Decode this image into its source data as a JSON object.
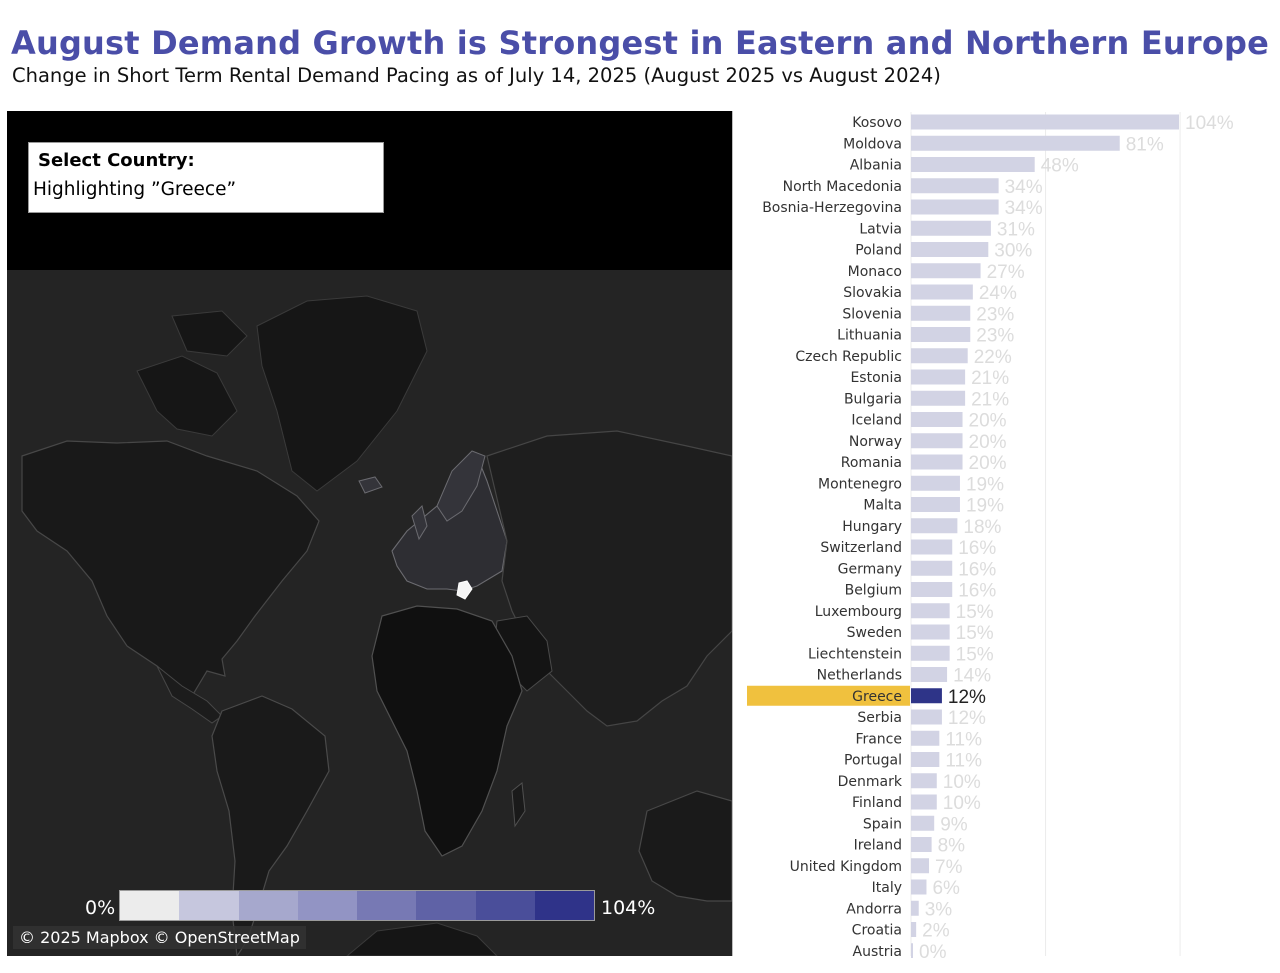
{
  "header": {
    "title": "August Demand Growth is Strongest in Eastern and Northern Europe",
    "subtitle": "Change in Short Term Rental Demand Pacing as of July 14, 2025 (August 2025 vs August 2024)"
  },
  "map": {
    "select_title": "Select Country:",
    "select_value": "Highlighting ”Greece”",
    "legend_min": "0%",
    "legend_max": "104%",
    "legend_colors": [
      "#ececec",
      "#c6c7de",
      "#a6a8cd",
      "#9294c4",
      "#7779b4",
      "#5f62a6",
      "#4a4e9a",
      "#2f3389"
    ],
    "attribution": "© 2025 Mapbox © OpenStreetMap"
  },
  "colors": {
    "title": "#4a4ea8",
    "bar": "#d2d3e4",
    "bar_highlight": "#2e3488",
    "label_highlight_bg": "#f0c13e"
  },
  "chart_data": {
    "type": "bar",
    "orientation": "horizontal",
    "title": "August Demand Growth is Strongest in Eastern and Northern Europe",
    "subtitle": "Change in Short Term Rental Demand Pacing as of July 14, 2025 (August 2025 vs August 2024)",
    "highlighted": "Greece",
    "xlim": [
      0,
      104
    ],
    "value_format": "percent",
    "categories": [
      "Kosovo",
      "Moldova",
      "Albania",
      "North Macedonia",
      "Bosnia-Herzegovina",
      "Latvia",
      "Poland",
      "Monaco",
      "Slovakia",
      "Slovenia",
      "Lithuania",
      "Czech Republic",
      "Estonia",
      "Bulgaria",
      "Iceland",
      "Norway",
      "Romania",
      "Montenegro",
      "Malta",
      "Hungary",
      "Switzerland",
      "Germany",
      "Belgium",
      "Luxembourg",
      "Sweden",
      "Liechtenstein",
      "Netherlands",
      "Greece",
      "Serbia",
      "France",
      "Portugal",
      "Denmark",
      "Finland",
      "Spain",
      "Ireland",
      "United Kingdom",
      "Italy",
      "Andorra",
      "Croatia",
      "Austria"
    ],
    "values": [
      104,
      81,
      48,
      34,
      34,
      31,
      30,
      27,
      24,
      23,
      23,
      22,
      21,
      21,
      20,
      20,
      20,
      19,
      19,
      18,
      16,
      16,
      16,
      15,
      15,
      15,
      14,
      12,
      12,
      11,
      11,
      10,
      10,
      9,
      8,
      7,
      6,
      3,
      2,
      0
    ],
    "labels": [
      "104%",
      "81%",
      "48%",
      "34%",
      "34%",
      "31%",
      "30%",
      "27%",
      "24%",
      "23%",
      "23%",
      "22%",
      "21%",
      "21%",
      "20%",
      "20%",
      "20%",
      "19%",
      "19%",
      "18%",
      "16%",
      "16%",
      "16%",
      "15%",
      "15%",
      "15%",
      "14%",
      "12%",
      "12%",
      "11%",
      "11%",
      "10%",
      "10%",
      "9%",
      "8%",
      "7%",
      "6%",
      "3%",
      "2%",
      "0%"
    ]
  }
}
